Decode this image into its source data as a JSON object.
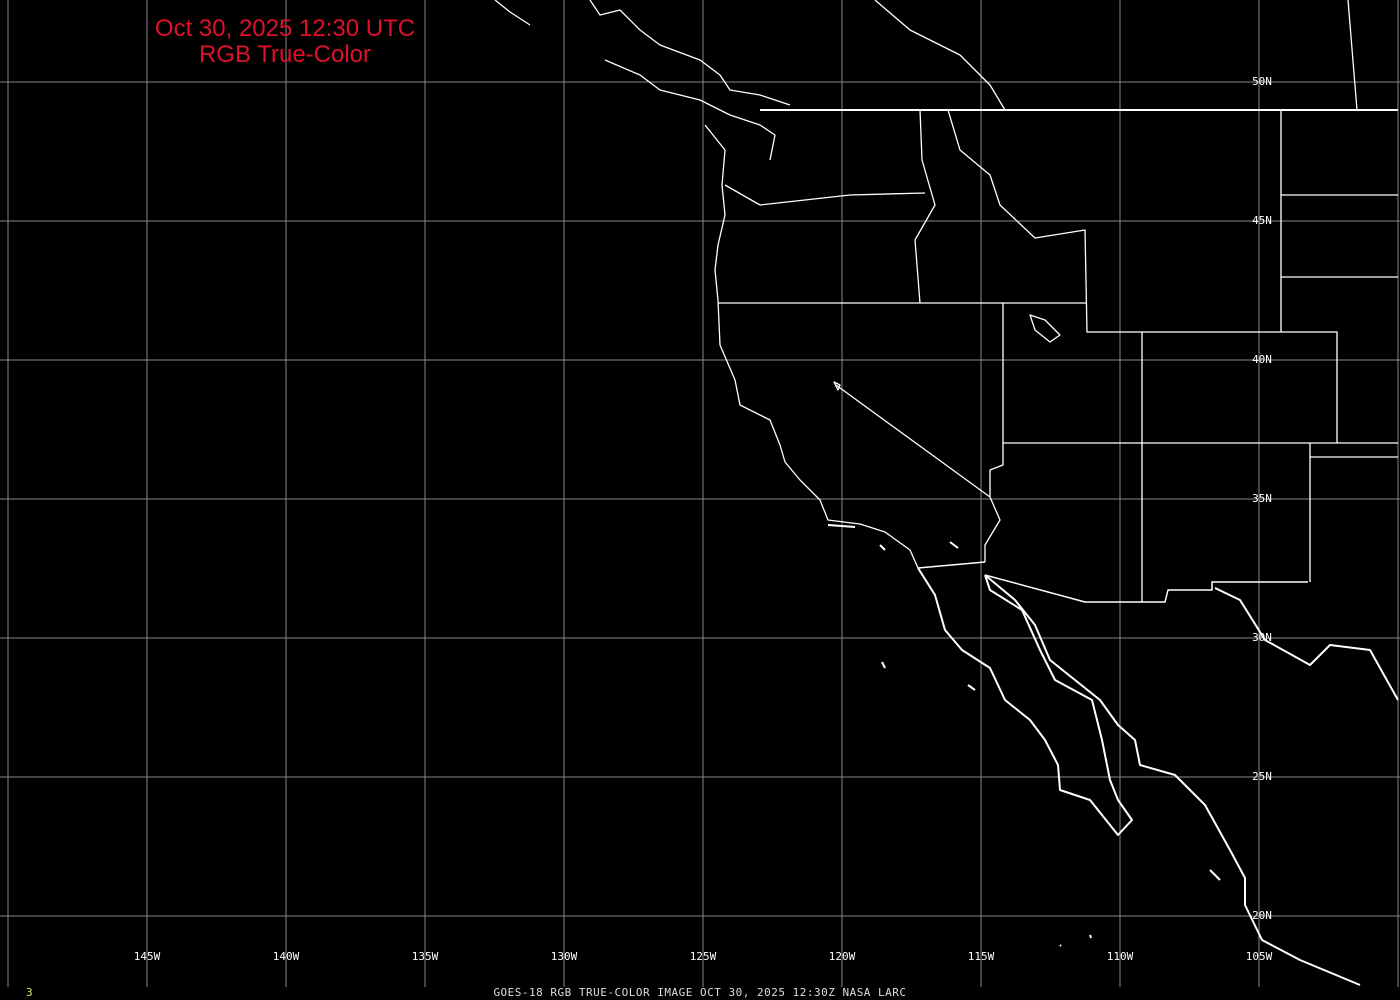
{
  "title": {
    "line1": "Oct 30, 2025 12:30 UTC",
    "line2": "RGB True-Color"
  },
  "caption": "GOES-18 RGB TRUE-COLOR IMAGE   OCT 30, 2025 12:30Z    NASA LARC",
  "frame_number": "3",
  "colors": {
    "title": "#e0102a",
    "grid": "#888888",
    "outlines": "#ffffff",
    "background": "#000000"
  },
  "grid": {
    "longitudes": [
      -150,
      -145,
      -140,
      -135,
      -130,
      -125,
      -120,
      -115,
      -110,
      -105,
      -100
    ],
    "latitudes": [
      50,
      45,
      40,
      35,
      30,
      25,
      20
    ],
    "lon_labels": [
      "145W",
      "140W",
      "135W",
      "130W",
      "125W",
      "120W",
      "115W",
      "110W",
      "105W"
    ],
    "lat_labels": [
      "50N",
      "45N",
      "40N",
      "35N",
      "30N",
      "25N",
      "20N"
    ]
  }
}
